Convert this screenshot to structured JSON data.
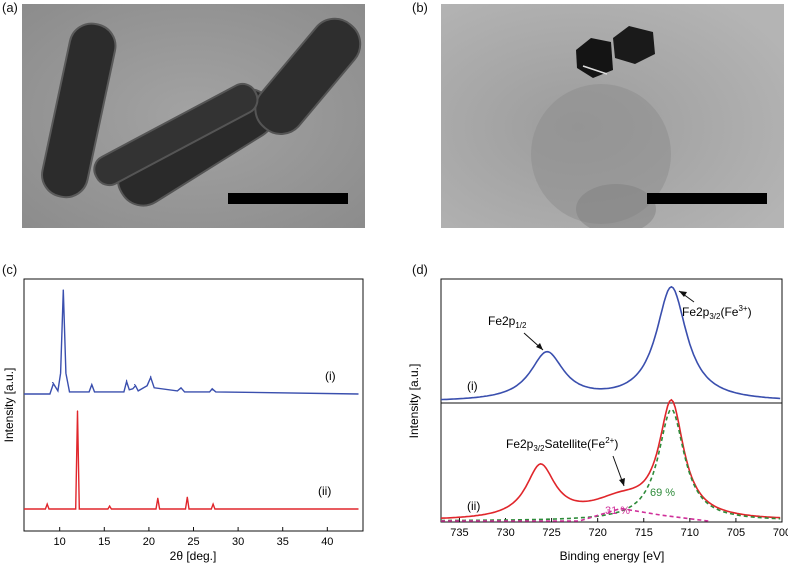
{
  "panels": {
    "a": {
      "label": "(a)"
    },
    "b": {
      "label": "(b)"
    },
    "c": {
      "label": "(c)"
    },
    "d": {
      "label": "(d)"
    }
  },
  "chart_data": [
    {
      "type": "line",
      "panel": "(c)",
      "xlabel": "2θ [deg.]",
      "ylabel": "Intensity [a.u.]",
      "xlim": [
        6,
        44
      ],
      "xticks": [
        10,
        15,
        20,
        25,
        30,
        35,
        40
      ],
      "series_labels": [
        "(i)",
        "(ii)"
      ],
      "series": [
        {
          "color": "#3a4fae",
          "x": [
            6,
            8.9,
            9.3,
            9.8,
            10.1,
            10.4,
            10.7,
            11.1,
            13.3,
            13.6,
            13.9,
            17.2,
            17.5,
            17.8,
            18.2,
            18.5,
            18.8,
            19.8,
            20.2,
            20.6,
            23.2,
            23.6,
            24.0,
            26.8,
            27.1,
            27.5,
            43.5
          ],
          "y": [
            0,
            0,
            10,
            3,
            20,
            100,
            20,
            2,
            2,
            9,
            2,
            2,
            12,
            4,
            5,
            8,
            3,
            8,
            16,
            6,
            3,
            6,
            2,
            2,
            5,
            2,
            0
          ],
          "peaks": [
            {
              "x": 9.2,
              "y": 11
            },
            {
              "x": 10.4,
              "y": 100
            },
            {
              "x": 13.6,
              "y": 8
            },
            {
              "x": 17.5,
              "y": 13
            },
            {
              "x": 18.4,
              "y": 9
            },
            {
              "x": 20.2,
              "y": 17
            },
            {
              "x": 23.5,
              "y": 5
            },
            {
              "x": 27.1,
              "y": 4
            }
          ]
        },
        {
          "color": "#e0262b",
          "x": [
            6,
            8.4,
            8.6,
            8.8,
            11.8,
            12.0,
            12.2,
            15.4,
            15.6,
            15.8,
            20.8,
            21.0,
            21.2,
            24.1,
            24.3,
            24.5,
            27.0,
            27.2,
            27.4,
            43.5
          ],
          "y": [
            0,
            0,
            5,
            0,
            0,
            100,
            0,
            0,
            3,
            0,
            0,
            11,
            0,
            0,
            12,
            0,
            0,
            5,
            0,
            0
          ],
          "peaks": [
            {
              "x": 8.6,
              "y": 5
            },
            {
              "x": 12.0,
              "y": 100
            },
            {
              "x": 15.6,
              "y": 3
            },
            {
              "x": 21.0,
              "y": 11
            },
            {
              "x": 24.3,
              "y": 12
            },
            {
              "x": 27.2,
              "y": 5
            }
          ]
        }
      ]
    },
    {
      "type": "line",
      "panel": "(d)",
      "xlabel": "Binding energy [eV]",
      "ylabel": "Intensity [a.u.]",
      "xlim": [
        737,
        700
      ],
      "xticks": [
        735,
        730,
        725,
        720,
        715,
        710,
        705,
        700
      ],
      "series_labels": [
        "(i)",
        "(ii)"
      ],
      "annotations": {
        "top_left_base": "Fe2p",
        "top_left_sub": "1/2",
        "top_right_base": "Fe2p",
        "top_right_sub": "3/2",
        "top_right_paren": "(Fe",
        "top_right_sup": "3+",
        "top_right_close": ")",
        "bottom_base": "Fe2p",
        "bottom_sub": "3/2",
        "bottom_rest": "Satellite(Fe",
        "bottom_sup": "2+",
        "bottom_close": ")",
        "pct_green": "69 %",
        "pct_magenta": "31 %"
      },
      "series": [
        {
          "color": "#3a4fae",
          "subpanel": "(i)",
          "peaks": [
            {
              "x": 725.5,
              "height": 0.42,
              "width": 2.2
            },
            {
              "x": 712.0,
              "height": 1.0,
              "width": 2.0
            }
          ]
        },
        {
          "color": "#e0262b",
          "subpanel": "(ii)",
          "peaks": [
            {
              "x": 726.2,
              "height": 0.46,
              "width": 1.9
            },
            {
              "x": 717.5,
              "height": 0.16,
              "width": 4.0
            },
            {
              "x": 712.0,
              "height": 1.0,
              "width": 1.6
            }
          ]
        },
        {
          "color": "#2e8b3a",
          "subpanel": "(ii)",
          "dashed": true,
          "label": "69 %",
          "peaks": [
            {
              "x": 712.0,
              "height": 0.98,
              "width": 1.7
            }
          ]
        },
        {
          "color": "#d0309a",
          "subpanel": "(ii)",
          "dashed": true,
          "label": "31 %",
          "line": [
            [
              737,
              0
            ],
            [
              722,
              0
            ],
            [
              717.5,
              0.11
            ],
            [
              713,
              0.05
            ],
            [
              708,
              0
            ]
          ]
        }
      ]
    }
  ]
}
